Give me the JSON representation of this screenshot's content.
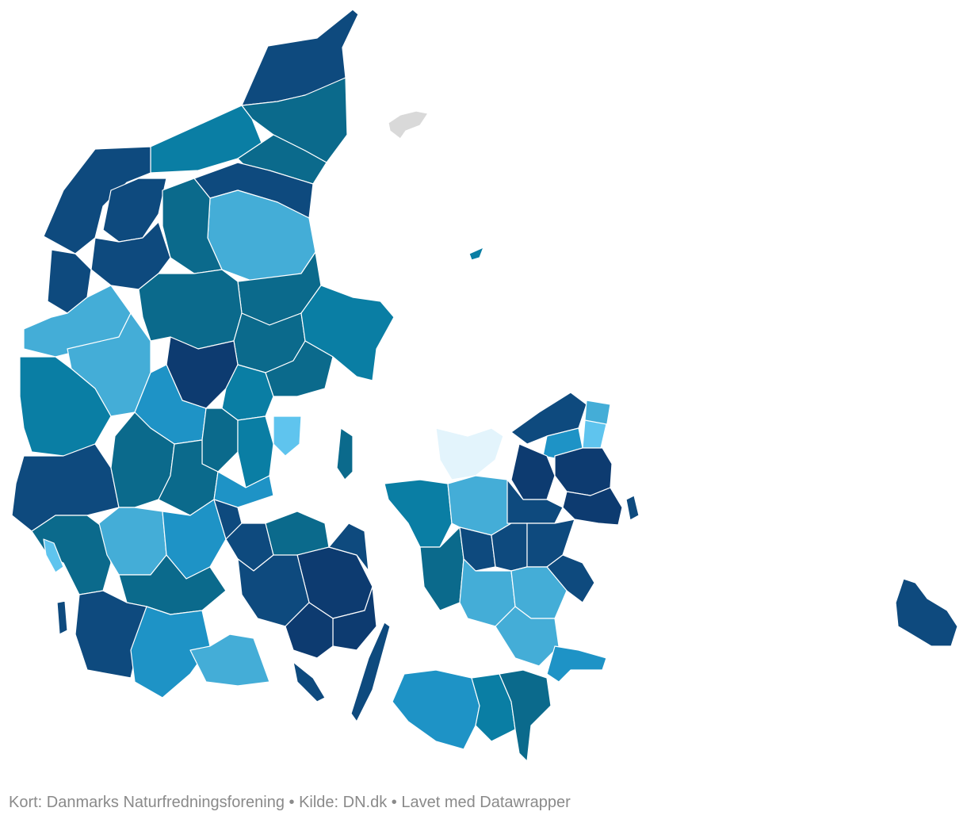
{
  "footer": {
    "map_label": "Kort: Danmarks Naturfredningsforening",
    "separator": " • ",
    "source_label": "Kilde: DN.dk",
    "made_with": "Lavet med Datawrapper"
  },
  "colors": {
    "darkest": "#0d3b70",
    "dark": "#0e4a7e",
    "teal_dark": "#0b6a8c",
    "teal": "#0a7ea4",
    "mid": "#1e93c6",
    "light": "#44add7",
    "lighter": "#5fc4ee",
    "lightest": "#e3f4fc",
    "no_data": "#d9d9d9"
  }
}
